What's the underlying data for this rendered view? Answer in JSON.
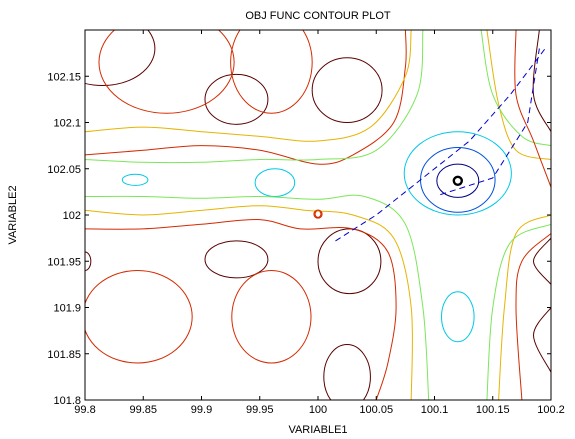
{
  "chart_data": {
    "type": "contour",
    "title": "OBJ FUNC CONTOUR PLOT",
    "xlabel": "VARIABLE1",
    "ylabel": "VARIABLE2",
    "xlim": [
      99.8,
      100.2
    ],
    "ylim": [
      101.8,
      102.2
    ],
    "xticks": [
      {
        "v": 99.8,
        "label": "99.8"
      },
      {
        "v": 99.85,
        "label": "99.85"
      },
      {
        "v": 99.9,
        "label": "99.9"
      },
      {
        "v": 99.95,
        "label": "99.95"
      },
      {
        "v": 100,
        "label": "100"
      },
      {
        "v": 100.05,
        "label": "100.05"
      },
      {
        "v": 100.1,
        "label": "100.1"
      },
      {
        "v": 100.15,
        "label": "100.15"
      },
      {
        "v": 100.2,
        "label": "100.2"
      }
    ],
    "yticks": [
      {
        "v": 101.8,
        "label": "101.8"
      },
      {
        "v": 101.85,
        "label": "101.85"
      },
      {
        "v": 101.9,
        "label": "101.9"
      },
      {
        "v": 101.95,
        "label": "101.95"
      },
      {
        "v": 102,
        "label": "102"
      },
      {
        "v": 102.05,
        "label": "102.05"
      },
      {
        "v": 102.1,
        "label": "102.1"
      },
      {
        "v": 102.15,
        "label": "102.15"
      }
    ],
    "grid": false,
    "contour_colors": {
      "darkred": "#5a0000",
      "red": "#d42a00",
      "orange": "#e6b400",
      "green": "#7ce65a",
      "cyan": "#00c8e6",
      "blue": "#0050dc",
      "navy": "#000080"
    },
    "closed_contours": [
      {
        "level": "darkred",
        "cx": 99.815,
        "cy": 102.18,
        "rx": 0.045,
        "ry": 0.04
      },
      {
        "level": "darkred",
        "cx": 99.93,
        "cy": 102.125,
        "rx": 0.027,
        "ry": 0.027
      },
      {
        "level": "darkred",
        "cx": 100.025,
        "cy": 102.135,
        "rx": 0.03,
        "ry": 0.035
      },
      {
        "level": "darkred",
        "cx": 99.93,
        "cy": 101.952,
        "rx": 0.027,
        "ry": 0.02
      },
      {
        "level": "darkred",
        "cx": 100.027,
        "cy": 101.95,
        "rx": 0.027,
        "ry": 0.035
      },
      {
        "level": "darkred",
        "cx": 100.025,
        "cy": 101.825,
        "rx": 0.02,
        "ry": 0.035
      },
      {
        "level": "darkred",
        "cx": 99.8,
        "cy": 101.95,
        "rx": 0.005,
        "ry": 0.01
      },
      {
        "level": "red",
        "cx": 99.845,
        "cy": 101.89,
        "rx": 0.047,
        "ry": 0.05
      },
      {
        "level": "red",
        "cx": 99.96,
        "cy": 101.89,
        "rx": 0.034,
        "ry": 0.05
      },
      {
        "level": "red",
        "cx": 99.87,
        "cy": 102.165,
        "rx": 0.058,
        "ry": 0.055
      },
      {
        "level": "red",
        "cx": 99.96,
        "cy": 102.165,
        "rx": 0.035,
        "ry": 0.055
      },
      {
        "level": "red",
        "cx": 100.0,
        "cy": 102.001,
        "rx": 0.0025,
        "ry": 0.0035
      },
      {
        "level": "cyan",
        "cx": 99.843,
        "cy": 102.038,
        "rx": 0.011,
        "ry": 0.006
      },
      {
        "level": "cyan",
        "cx": 99.963,
        "cy": 102.035,
        "rx": 0.017,
        "ry": 0.015
      },
      {
        "level": "cyan",
        "cx": 100.12,
        "cy": 101.89,
        "rx": 0.014,
        "ry": 0.027
      },
      {
        "level": "cyan",
        "cx": 100.12,
        "cy": 102.045,
        "rx": 0.046,
        "ry": 0.045
      },
      {
        "level": "blue",
        "cx": 100.12,
        "cy": 102.038,
        "rx": 0.032,
        "ry": 0.035
      },
      {
        "level": "navy",
        "cx": 100.12,
        "cy": 102.037,
        "rx": 0.018,
        "ry": 0.018
      }
    ],
    "open_contours": [
      {
        "level": "red",
        "points": [
          [
            99.8,
            101.985
          ],
          [
            99.85,
            101.985
          ],
          [
            99.9,
            101.99
          ],
          [
            99.95,
            101.995
          ],
          [
            99.985,
            101.985
          ],
          [
            100.03,
            101.985
          ],
          [
            100.06,
            101.96
          ],
          [
            100.067,
            101.9
          ],
          [
            100.06,
            101.84
          ],
          [
            100.05,
            101.8
          ]
        ]
      },
      {
        "level": "red",
        "points": [
          [
            99.8,
            102.065
          ],
          [
            99.85,
            102.07
          ],
          [
            99.9,
            102.075
          ],
          [
            99.95,
            102.07
          ],
          [
            100.0,
            102.055
          ],
          [
            100.03,
            102.065
          ],
          [
            100.065,
            102.1
          ],
          [
            100.075,
            102.16
          ],
          [
            100.075,
            102.2
          ]
        ]
      },
      {
        "level": "orange",
        "points": [
          [
            99.8,
            102.005
          ],
          [
            99.85,
            102.0
          ],
          [
            99.9,
            102.005
          ],
          [
            99.95,
            102.01
          ],
          [
            99.99,
            102.005
          ],
          [
            100.03,
            102.0
          ],
          [
            100.065,
            101.975
          ],
          [
            100.08,
            101.9
          ],
          [
            100.08,
            101.8
          ]
        ]
      },
      {
        "level": "orange",
        "points": [
          [
            99.8,
            102.09
          ],
          [
            99.85,
            102.095
          ],
          [
            99.9,
            102.09
          ],
          [
            99.95,
            102.085
          ],
          [
            100.0,
            102.08
          ],
          [
            100.045,
            102.095
          ],
          [
            100.075,
            102.15
          ],
          [
            100.08,
            102.2
          ]
        ]
      },
      {
        "level": "green",
        "points": [
          [
            99.8,
            102.02
          ],
          [
            99.85,
            102.02
          ],
          [
            99.9,
            102.018
          ],
          [
            99.95,
            102.02
          ],
          [
            100.0,
            102.017
          ],
          [
            100.04,
            102.02
          ],
          [
            100.075,
            101.99
          ],
          [
            100.09,
            101.9
          ],
          [
            100.095,
            101.8
          ]
        ]
      },
      {
        "level": "green",
        "points": [
          [
            99.8,
            102.06
          ],
          [
            99.85,
            102.057
          ],
          [
            99.9,
            102.057
          ],
          [
            99.95,
            102.06
          ],
          [
            100.0,
            102.06
          ],
          [
            100.05,
            102.07
          ],
          [
            100.085,
            102.13
          ],
          [
            100.09,
            102.2
          ]
        ]
      },
      {
        "level": "orange",
        "points": [
          [
            100.145,
            102.2
          ],
          [
            100.155,
            102.12
          ],
          [
            100.17,
            102.07
          ],
          [
            100.2,
            102.06
          ]
        ]
      },
      {
        "level": "green",
        "points": [
          [
            100.14,
            102.2
          ],
          [
            100.15,
            102.13
          ],
          [
            100.175,
            102.085
          ],
          [
            100.2,
            102.075
          ]
        ]
      },
      {
        "level": "orange",
        "points": [
          [
            100.155,
            101.8
          ],
          [
            100.16,
            101.9
          ],
          [
            100.17,
            101.98
          ],
          [
            100.2,
            102.0
          ]
        ]
      },
      {
        "level": "green",
        "points": [
          [
            100.145,
            101.8
          ],
          [
            100.15,
            101.9
          ],
          [
            100.165,
            101.97
          ],
          [
            100.2,
            101.99
          ]
        ]
      },
      {
        "level": "red",
        "points": [
          [
            100.2,
            102.03
          ],
          [
            100.185,
            102.08
          ],
          [
            100.17,
            102.13
          ],
          [
            100.17,
            102.2
          ]
        ]
      },
      {
        "level": "darkred",
        "points": [
          [
            100.2,
            102.09
          ],
          [
            100.185,
            102.13
          ],
          [
            100.19,
            102.2
          ]
        ]
      },
      {
        "level": "red",
        "points": [
          [
            100.2,
            101.98
          ],
          [
            100.175,
            101.95
          ],
          [
            100.17,
            101.9
          ],
          [
            100.175,
            101.8
          ]
        ]
      },
      {
        "level": "darkred",
        "points": [
          [
            100.2,
            101.925
          ],
          [
            100.185,
            101.95
          ],
          [
            100.2,
            101.975
          ]
        ]
      },
      {
        "level": "darkred",
        "points": [
          [
            100.2,
            101.83
          ],
          [
            100.185,
            101.87
          ],
          [
            100.2,
            101.9
          ]
        ]
      }
    ],
    "search_path": {
      "color": "#0000cc",
      "points": [
        [
          100.015,
          101.972
        ],
        [
          100.05,
          102.0
        ],
        [
          100.09,
          102.04
        ],
        [
          100.13,
          102.08
        ],
        [
          100.165,
          102.13
        ],
        [
          100.195,
          102.18
        ]
      ],
      "secondary": [
        [
          100.105,
          102.022
        ],
        [
          100.15,
          102.04
        ],
        [
          100.18,
          102.1
        ],
        [
          100.19,
          102.18
        ]
      ]
    },
    "start_marker": {
      "x": 100.0,
      "y": 102.001,
      "color": "#d42a00"
    },
    "optimum_marker": {
      "x": 100.12,
      "y": 102.037,
      "color": "#000000"
    }
  }
}
